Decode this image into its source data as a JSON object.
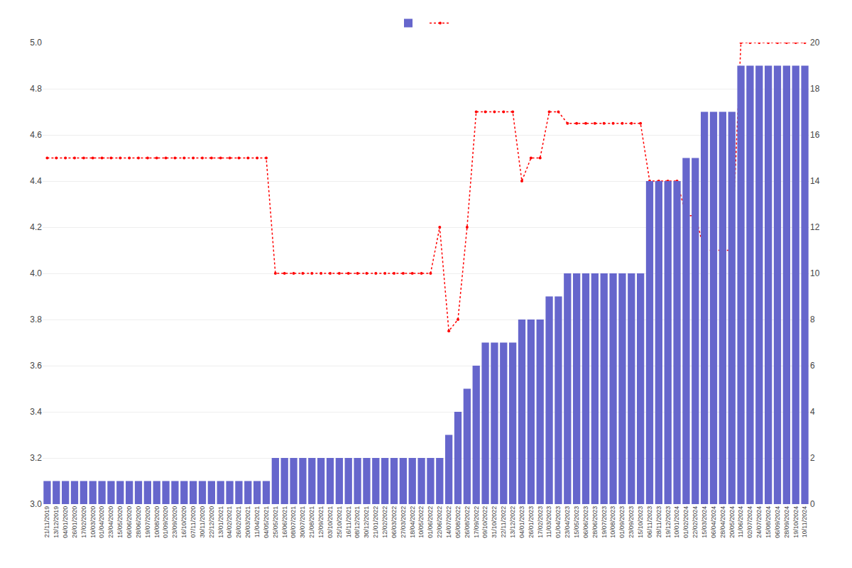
{
  "chart_data": {
    "type": "bar",
    "categories": [
      "21/11/2019",
      "13/12/2019",
      "04/01/2020",
      "26/01/2020",
      "17/02/2020",
      "10/03/2020",
      "01/04/2020",
      "23/04/2020",
      "15/05/2020",
      "06/06/2020",
      "28/06/2020",
      "19/07/2020",
      "10/08/2020",
      "01/09/2020",
      "23/09/2020",
      "16/10/2020",
      "07/11/2020",
      "30/11/2020",
      "22/12/2020",
      "13/01/2021",
      "04/02/2021",
      "26/02/2021",
      "20/03/2021",
      "11/04/2021",
      "04/05/2021",
      "25/05/2021",
      "16/06/2021",
      "08/07/2021",
      "30/07/2021",
      "21/08/2021",
      "12/09/2021",
      "03/10/2021",
      "25/10/2021",
      "16/11/2021",
      "08/12/2021",
      "30/12/2021",
      "21/01/2022",
      "12/02/2022",
      "06/03/2022",
      "27/03/2022",
      "18/04/2022",
      "10/05/2022",
      "01/06/2022",
      "22/06/2022",
      "14/07/2022",
      "05/08/2022",
      "26/08/2022",
      "17/09/2022",
      "09/10/2022",
      "31/10/2022",
      "22/11/2022",
      "13/12/2022",
      "04/01/2023",
      "26/01/2023",
      "17/02/2023",
      "11/03/2023",
      "01/04/2023",
      "23/04/2023",
      "15/05/2023",
      "06/06/2023",
      "28/06/2023",
      "19/07/2023",
      "10/08/2023",
      "01/09/2023",
      "23/09/2023",
      "15/10/2023",
      "06/11/2023",
      "28/11/2023",
      "19/12/2023",
      "10/01/2024",
      "01/02/2024",
      "22/02/2024",
      "15/03/2024",
      "06/04/2024",
      "28/04/2024",
      "20/05/2024",
      "11/06/2024",
      "02/07/2024",
      "24/07/2024",
      "15/08/2024",
      "06/09/2024",
      "28/09/2024",
      "19/10/2024",
      "10/11/2024"
    ],
    "series": [
      {
        "type": "bar",
        "axis": "y2",
        "color": "#6666cc",
        "values": [
          1,
          1,
          1,
          1,
          1,
          1,
          1,
          1,
          1,
          1,
          1,
          1,
          1,
          1,
          1,
          1,
          1,
          1,
          1,
          1,
          1,
          1,
          1,
          1,
          1,
          2,
          2,
          2,
          2,
          2,
          2,
          2,
          2,
          2,
          2,
          2,
          2,
          2,
          2,
          2,
          2,
          2,
          2,
          2,
          3,
          4,
          5,
          6,
          7,
          7,
          7,
          7,
          8,
          8,
          8,
          9,
          9,
          10,
          10,
          10,
          10,
          10,
          10,
          10,
          10,
          10,
          14,
          14,
          14,
          14,
          15,
          15,
          17,
          17,
          17,
          17,
          19,
          19,
          19,
          19,
          19,
          19,
          19,
          19
        ]
      },
      {
        "type": "line",
        "color": "#ff0000",
        "line_style": "dotted",
        "marker": "circle",
        "values": [
          4.5,
          4.5,
          4.5,
          4.5,
          4.5,
          4.5,
          4.5,
          4.5,
          4.5,
          4.5,
          4.5,
          4.5,
          4.5,
          4.5,
          4.5,
          4.5,
          4.5,
          4.5,
          4.5,
          4.5,
          4.5,
          4.5,
          4.5,
          4.5,
          4.5,
          4.0,
          4.0,
          4.0,
          4.0,
          4.0,
          4.0,
          4.0,
          4.0,
          4.0,
          4.0,
          4.0,
          4.0,
          4.0,
          4.0,
          4.0,
          4.0,
          4.0,
          4.0,
          4.2,
          3.75,
          3.8,
          4.2,
          4.7,
          4.7,
          4.7,
          4.7,
          4.7,
          4.4,
          4.5,
          4.5,
          4.7,
          4.7,
          4.65,
          4.65,
          4.65,
          4.65,
          4.65,
          4.65,
          4.65,
          4.65,
          4.65,
          4.4,
          4.4,
          4.4,
          4.4,
          4.25,
          4.25,
          4.1,
          4.1,
          4.1,
          4.1,
          5.0,
          5.0,
          5.0,
          5.0,
          5.0,
          5.0,
          5.0,
          5.0
        ]
      }
    ],
    "ylim": [
      3.0,
      5.0
    ],
    "yticks": [
      {
        "value": 3.0,
        "label": "3.0"
      },
      3.2,
      3.4,
      3.6,
      3.8,
      {
        "value": 4.0,
        "label": "4.0"
      },
      4.2,
      4.4,
      4.6,
      4.8,
      {
        "value": 5.0,
        "label": "5.0"
      }
    ],
    "y2lim": [
      0,
      20
    ],
    "y2ticks": [
      0,
      2,
      4,
      6,
      8,
      10,
      12,
      14,
      16,
      18,
      20
    ],
    "grid": true,
    "legend": "top"
  }
}
